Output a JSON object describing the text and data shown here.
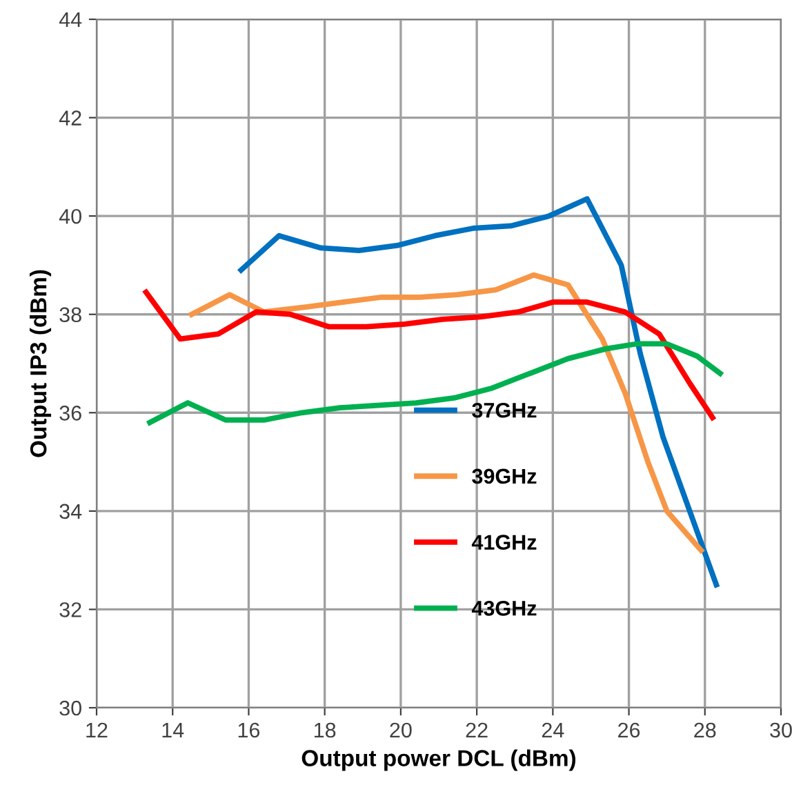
{
  "chart_data": {
    "type": "line",
    "xlabel": "Output power DCL (dBm)",
    "ylabel": "Output IP3 (dBm)",
    "xlim": [
      12,
      30
    ],
    "xticks": [
      12,
      14,
      16,
      18,
      20,
      22,
      24,
      26,
      28,
      30
    ],
    "ylim": [
      30,
      44
    ],
    "yticks": [
      30,
      32,
      34,
      36,
      38,
      40,
      42,
      44
    ],
    "grid": true,
    "legend": "bottom",
    "marker": "none",
    "line_style": "solid",
    "series": [
      {
        "name": "37GHz",
        "color": "#0070c0",
        "x": [
          15.8,
          16.8,
          17.9,
          18.9,
          19.9,
          20.9,
          21.9,
          22.9,
          23.9,
          24.9,
          25.8,
          26.3,
          26.9,
          27.6,
          28.3
        ],
        "values": [
          38.9,
          39.6,
          39.35,
          39.3,
          39.4,
          39.6,
          39.75,
          39.8,
          40.0,
          40.35,
          39.0,
          37.2,
          35.5,
          34.0,
          32.5
        ]
      },
      {
        "name": "39GHz",
        "color": "#f79646",
        "x": [
          14.5,
          15.5,
          16.4,
          17.5,
          18.5,
          19.5,
          20.5,
          21.5,
          22.5,
          23.5,
          24.4,
          25.3,
          25.9,
          26.5,
          27.0,
          27.9
        ],
        "values": [
          38.0,
          38.4,
          38.05,
          38.15,
          38.25,
          38.35,
          38.35,
          38.4,
          38.5,
          38.8,
          38.6,
          37.5,
          36.4,
          35.0,
          34.0,
          33.2
        ]
      },
      {
        "name": "41GHz",
        "color": "#ff0000",
        "x": [
          13.3,
          14.2,
          15.2,
          16.2,
          17.1,
          18.1,
          19.1,
          20.1,
          21.1,
          22.1,
          23.1,
          24.0,
          24.9,
          25.9,
          26.8,
          27.6,
          28.2
        ],
        "values": [
          38.45,
          37.5,
          37.6,
          38.05,
          38.0,
          37.75,
          37.75,
          37.8,
          37.9,
          37.95,
          38.05,
          38.25,
          38.25,
          38.05,
          37.6,
          36.6,
          35.9
        ]
      },
      {
        "name": "43GHz",
        "color": "#00b050",
        "x": [
          13.4,
          14.4,
          15.4,
          16.4,
          17.4,
          18.4,
          19.4,
          20.4,
          21.4,
          22.4,
          23.4,
          24.4,
          25.4,
          26.2,
          27.0,
          27.8,
          28.4
        ],
        "values": [
          35.8,
          36.2,
          35.85,
          35.85,
          36.0,
          36.1,
          36.15,
          36.2,
          36.3,
          36.5,
          36.8,
          37.1,
          37.3,
          37.4,
          37.4,
          37.15,
          36.8
        ]
      }
    ]
  }
}
